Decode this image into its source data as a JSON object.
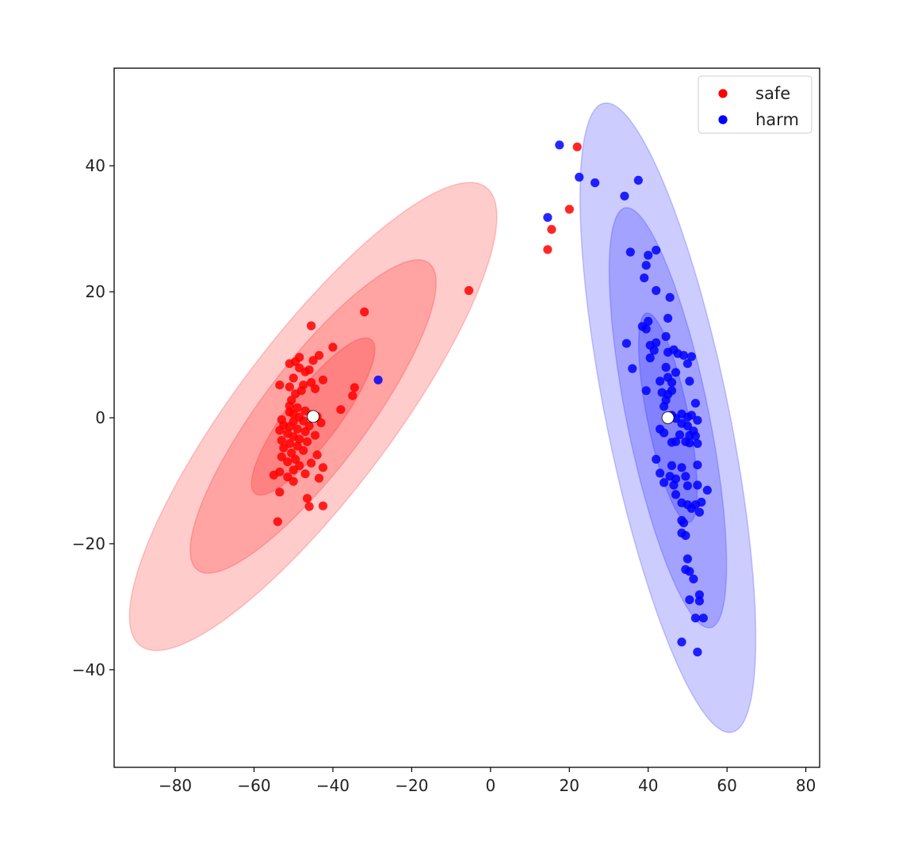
{
  "chart_data": {
    "type": "scatter",
    "title": "",
    "xlabel": "",
    "ylabel": "",
    "xlim": [
      -95.5,
      83.5
    ],
    "ylim": [
      -55.5,
      55.5
    ],
    "x_ticks": [
      -80,
      -60,
      -40,
      -20,
      0,
      20,
      40,
      60,
      80
    ],
    "y_ticks": [
      -40,
      -20,
      0,
      20,
      40
    ],
    "grid": false,
    "legend_position": "top-right",
    "series": [
      {
        "name": "safe",
        "color": "#ff0000",
        "points": [
          [
            -5.5,
            20.2
          ],
          [
            -32,
            16.8
          ],
          [
            -45.5,
            14.6
          ],
          [
            -40,
            11.2
          ],
          [
            -43.5,
            9.9
          ],
          [
            -48.5,
            9.6
          ],
          [
            -45,
            9.1
          ],
          [
            -49.5,
            8.9
          ],
          [
            -51,
            8.6
          ],
          [
            -48.5,
            7.9
          ],
          [
            -46,
            7.6
          ],
          [
            -47,
            7.3
          ],
          [
            -50,
            6.3
          ],
          [
            -42.5,
            6
          ],
          [
            -45.5,
            5.6
          ],
          [
            -47.5,
            5.2
          ],
          [
            -53.5,
            5.2
          ],
          [
            -51,
            4.9
          ],
          [
            -34.5,
            4.8
          ],
          [
            -44.5,
            4.6
          ],
          [
            -48,
            4.3
          ],
          [
            -49.5,
            3.8
          ],
          [
            -35,
            3.5
          ],
          [
            -50.5,
            2.8
          ],
          [
            -51,
            1.9
          ],
          [
            -49,
            1.6
          ],
          [
            -38,
            1.3
          ],
          [
            -47,
            1.1
          ],
          [
            -51,
            0.9
          ],
          [
            -50,
            0.6
          ],
          [
            -45.5,
            0.5
          ],
          [
            -44,
            0.2
          ],
          [
            -48.5,
            0.1
          ],
          [
            -53,
            -0.3
          ],
          [
            -50,
            -0.6
          ],
          [
            -47.5,
            -0.5
          ],
          [
            -43,
            -0.8
          ],
          [
            -52.5,
            -1.2
          ],
          [
            -51,
            -1.4
          ],
          [
            -46,
            -1.3
          ],
          [
            -49,
            -1.8
          ],
          [
            -53.5,
            -2
          ],
          [
            -47,
            -2.2
          ],
          [
            -51.5,
            -2.5
          ],
          [
            -44.5,
            -2.8
          ],
          [
            -50,
            -3
          ],
          [
            -48.5,
            -3.4
          ],
          [
            -53,
            -3.6
          ],
          [
            -46.5,
            -3.8
          ],
          [
            -51,
            -4.1
          ],
          [
            -49,
            -4.5
          ],
          [
            -52.5,
            -4.8
          ],
          [
            -47.5,
            -5.2
          ],
          [
            -50.5,
            -5.6
          ],
          [
            -44,
            -5.9
          ],
          [
            -53,
            -6.2
          ],
          [
            -49.5,
            -6.6
          ],
          [
            -51.5,
            -7
          ],
          [
            -45.5,
            -7.2
          ],
          [
            -48.5,
            -7.6
          ],
          [
            -42.5,
            -7.9
          ],
          [
            -50,
            -8.3
          ],
          [
            -53.5,
            -8.6
          ],
          [
            -47,
            -8.9
          ],
          [
            -55,
            -9.1
          ],
          [
            -51.5,
            -9.4
          ],
          [
            -43.5,
            -9.6
          ],
          [
            -50,
            -10.1
          ],
          [
            -53.5,
            -11.8
          ],
          [
            -46.5,
            -12.8
          ],
          [
            -46,
            -14.1
          ],
          [
            -42.5,
            -14
          ],
          [
            -54,
            -16.5
          ],
          [
            14.5,
            26.7
          ],
          [
            15.5,
            29.9
          ],
          [
            20,
            33.1
          ],
          [
            22,
            43
          ]
        ]
      },
      {
        "name": "harm",
        "color": "#0000ff",
        "points": [
          [
            17.5,
            43.3
          ],
          [
            22.5,
            38.2
          ],
          [
            26.5,
            37.3
          ],
          [
            37.5,
            37.7
          ],
          [
            34,
            35.2
          ],
          [
            14.5,
            31.8
          ],
          [
            35.5,
            26.3
          ],
          [
            42,
            26.6
          ],
          [
            40,
            25.8
          ],
          [
            39.5,
            24.2
          ],
          [
            39,
            22.2
          ],
          [
            42,
            20.2
          ],
          [
            45.5,
            19.1
          ],
          [
            45,
            15.8
          ],
          [
            40,
            15.3
          ],
          [
            38.5,
            14.5
          ],
          [
            39.5,
            14.1
          ],
          [
            44.5,
            12.9
          ],
          [
            34.5,
            11.8
          ],
          [
            42,
            11.9
          ],
          [
            40.5,
            11.5
          ],
          [
            41.5,
            10.7
          ],
          [
            46.5,
            10.8
          ],
          [
            45,
            10.4
          ],
          [
            47.5,
            10.2
          ],
          [
            49,
            9.9
          ],
          [
            51,
            9.7
          ],
          [
            40.5,
            9.5
          ],
          [
            50,
            8.6
          ],
          [
            44.5,
            8
          ],
          [
            36,
            7.8
          ],
          [
            47,
            7.2
          ],
          [
            45,
            6.4
          ],
          [
            43,
            5.8
          ],
          [
            46,
            5.6
          ],
          [
            50.5,
            5.8
          ],
          [
            39.5,
            4.3
          ],
          [
            43.5,
            4
          ],
          [
            46,
            4.3
          ],
          [
            45,
            3.7
          ],
          [
            44.5,
            2.8
          ],
          [
            52,
            2.3
          ],
          [
            44,
            1.8
          ],
          [
            48.5,
            0.6
          ],
          [
            46,
            0.4
          ],
          [
            51,
            0.4
          ],
          [
            50,
            0.1
          ],
          [
            47,
            -0.1
          ],
          [
            52.5,
            -0.4
          ],
          [
            48.5,
            -0.9
          ],
          [
            50,
            -1.3
          ],
          [
            43,
            -1.8
          ],
          [
            51.5,
            -2.1
          ],
          [
            44,
            -2.4
          ],
          [
            48,
            -2.7
          ],
          [
            50.5,
            -2.8
          ],
          [
            52,
            -2.9
          ],
          [
            46,
            -3.9
          ],
          [
            47,
            -3.8
          ],
          [
            49.5,
            -3.8
          ],
          [
            50.5,
            -4
          ],
          [
            52.5,
            -4.1
          ],
          [
            42,
            -6.6
          ],
          [
            46,
            -7.6
          ],
          [
            48.5,
            -7.9
          ],
          [
            52.5,
            -7.5
          ],
          [
            43,
            -8.8
          ],
          [
            45.5,
            -9.3
          ],
          [
            47,
            -9.7
          ],
          [
            49.5,
            -9.3
          ],
          [
            44,
            -10.3
          ],
          [
            46.5,
            -10.7
          ],
          [
            50,
            -10.8
          ],
          [
            52.5,
            -10.7
          ],
          [
            55,
            -11.5
          ],
          [
            47,
            -12.2
          ],
          [
            48.5,
            -13.5
          ],
          [
            50,
            -13.8
          ],
          [
            52,
            -13.8
          ],
          [
            53.5,
            -13.4
          ],
          [
            51,
            -14.4
          ],
          [
            53,
            -15
          ],
          [
            48.5,
            -16.3
          ],
          [
            49,
            -16.7
          ],
          [
            48.5,
            -18.3
          ],
          [
            49.5,
            -18.7
          ],
          [
            50,
            -22.4
          ],
          [
            49.5,
            -24.1
          ],
          [
            50.5,
            -24.4
          ],
          [
            51.5,
            -25.6
          ],
          [
            53,
            -28.1
          ],
          [
            50.5,
            -28.9
          ],
          [
            53,
            -29.1
          ],
          [
            52,
            -31.8
          ],
          [
            54,
            -31.8
          ],
          [
            48.5,
            -35.6
          ],
          [
            52.5,
            -37.2
          ],
          [
            -28.5,
            6
          ]
        ]
      }
    ],
    "cluster_centers": [
      {
        "name": "safe-center",
        "x": -45,
        "y": 0.2,
        "color": "#ffffff"
      },
      {
        "name": "harm-center",
        "x": 45,
        "y": 0,
        "color": "#ffffff"
      }
    ],
    "confidence_ellipses": [
      {
        "cluster": "safe",
        "cx": -45,
        "cy": 0.2,
        "a": 57.5,
        "b": 15.7,
        "angle_deg": 37.5,
        "color": "#ff0000",
        "opacity": 0.2
      },
      {
        "cluster": "safe",
        "cx": -45,
        "cy": 0.2,
        "a": 38.5,
        "b": 10.5,
        "angle_deg": 37.5,
        "color": "#ff0000",
        "opacity": 0.2
      },
      {
        "cluster": "safe",
        "cx": -45,
        "cy": 0.2,
        "a": 19.3,
        "b": 5.25,
        "angle_deg": 37.5,
        "color": "#ff0000",
        "opacity": 0.2
      },
      {
        "cluster": "harm",
        "cx": 45,
        "cy": 0,
        "a": 52.6,
        "b": 15.1,
        "angle_deg": -71,
        "color": "#0000ff",
        "opacity": 0.2
      },
      {
        "cluster": "harm",
        "cx": 45,
        "cy": 0,
        "a": 35.1,
        "b": 10.1,
        "angle_deg": -71,
        "color": "#0000ff",
        "opacity": 0.2
      },
      {
        "cluster": "harm",
        "cx": 45,
        "cy": 0,
        "a": 17.5,
        "b": 5.05,
        "angle_deg": -71,
        "color": "#0000ff",
        "opacity": 0.2
      }
    ]
  }
}
